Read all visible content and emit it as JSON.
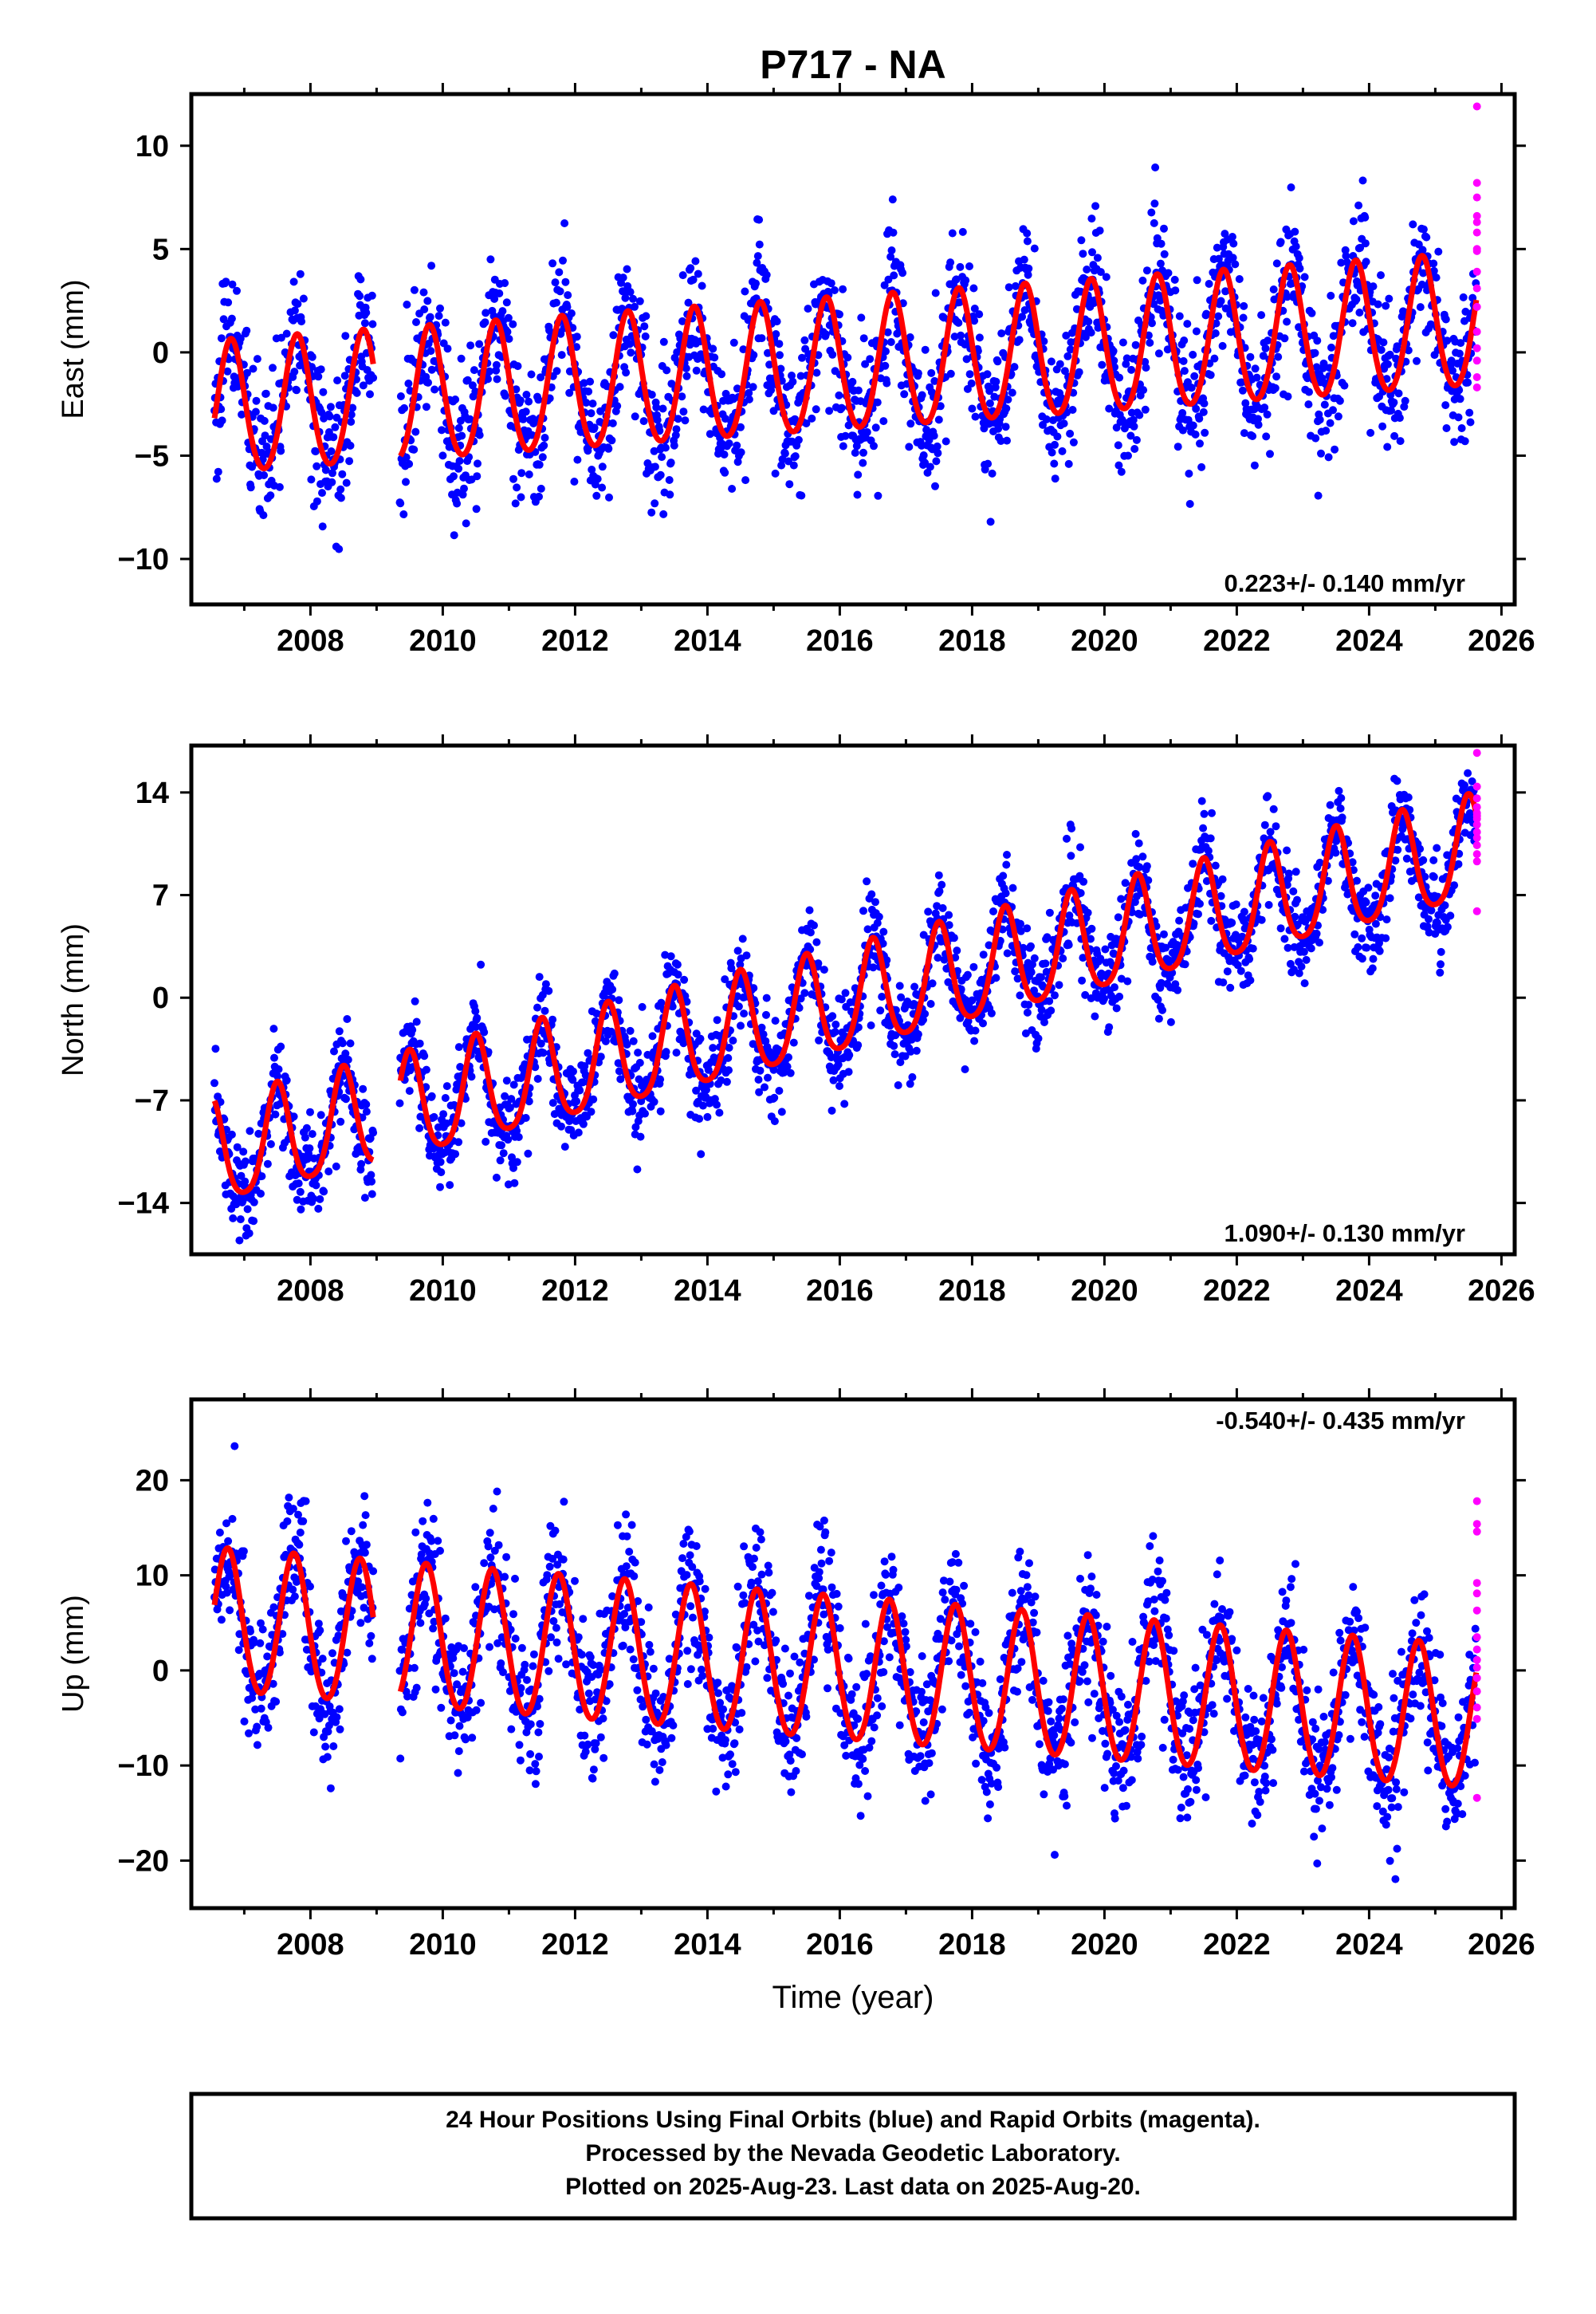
{
  "chart_data": [
    {
      "type": "scatter",
      "title": "P717 - NA",
      "ylabel": "East (mm)",
      "xlabel": "",
      "xlim": [
        2006.2,
        2026.2
      ],
      "ylim": [
        -12.2,
        12.5
      ],
      "xticks": [
        2008,
        2010,
        2012,
        2014,
        2016,
        2018,
        2020,
        2022,
        2024,
        2026
      ],
      "yticks": [
        -10,
        -5,
        0,
        5,
        10
      ],
      "rate_text": "0.223+/- 0.140 mm/yr",
      "rate_position": "bottom-right",
      "grid": false,
      "model": {
        "start": 2006.55,
        "end": 2025.62,
        "gap": [
          2008.95,
          2009.35
        ],
        "offset": -2.9,
        "slope": 0.223,
        "amp_annual": 3.2,
        "phase_peak": 0.8,
        "amp_semi": 0.3,
        "amp_growth": 0.0
      },
      "scatter": {
        "noise": 1.7,
        "outlier_range": 4.5
      },
      "rapid_points": {
        "x": 2025.63,
        "values": [
          11.9,
          8.2,
          7.5,
          6.3,
          5.8,
          4.9,
          3.9,
          3.1,
          2.2,
          1.0,
          0.2,
          -0.4,
          -1.2,
          -1.7,
          5.0,
          6.6
        ]
      },
      "series": [
        {
          "name": "Final Orbits",
          "color": "#0000ff"
        },
        {
          "name": "Rapid Orbits",
          "color": "#ff00ff"
        },
        {
          "name": "Model",
          "color": "#ff0000"
        }
      ]
    },
    {
      "type": "scatter",
      "title": "",
      "ylabel": "North (mm)",
      "xlabel": "",
      "xlim": [
        2006.2,
        2026.2
      ],
      "ylim": [
        -17.5,
        17.2
      ],
      "xticks": [
        2008,
        2010,
        2012,
        2014,
        2016,
        2018,
        2020,
        2022,
        2024,
        2026
      ],
      "yticks": [
        -14,
        -7,
        0,
        7,
        14
      ],
      "rate_text": "1.090+/- 0.130 mm/yr",
      "rate_position": "bottom-right",
      "grid": false,
      "model": {
        "start": 2006.55,
        "end": 2025.62,
        "gap": [
          2008.95,
          2009.35
        ],
        "offset": -10.9,
        "slope": 1.09,
        "amp_annual": 3.5,
        "phase_peak": 0.5,
        "amp_semi": 0.6,
        "amp_growth": 0.0
      },
      "scatter": {
        "noise": 1.6,
        "outlier_range": 4.0
      },
      "rapid_points": {
        "x": 2025.63,
        "values": [
          16.7,
          14.4,
          13.6,
          13.0,
          12.6,
          12.2,
          11.8,
          11.3,
          10.9,
          10.4,
          9.8,
          9.3,
          5.9,
          12.4
        ]
      },
      "series": [
        {
          "name": "Final Orbits",
          "color": "#0000ff"
        },
        {
          "name": "Rapid Orbits",
          "color": "#ff00ff"
        },
        {
          "name": "Model",
          "color": "#ff0000"
        }
      ]
    },
    {
      "type": "scatter",
      "title": "",
      "ylabel": "Up (mm)",
      "xlabel": "Time (year)",
      "xlim": [
        2006.2,
        2026.2
      ],
      "ylim": [
        -25,
        28.5
      ],
      "xticks": [
        2008,
        2010,
        2012,
        2014,
        2016,
        2018,
        2020,
        2022,
        2024,
        2026
      ],
      "yticks": [
        -20,
        -10,
        0,
        10,
        20
      ],
      "rate_text": "-0.540+/- 0.435 mm/yr",
      "rate_position": "top-right",
      "grid": false,
      "model": {
        "start": 2006.55,
        "end": 2025.62,
        "gap": [
          2008.95,
          2009.35
        ],
        "offset": 5.0,
        "slope": -0.54,
        "amp_annual": 7.5,
        "phase_peak": 0.75,
        "amp_semi": 0.5,
        "amp_growth": 0.0
      },
      "scatter": {
        "noise": 3.6,
        "outlier_range": 8.0
      },
      "rapid_points": {
        "x": 2025.63,
        "values": [
          17.8,
          15.4,
          14.6,
          9.2,
          8.1,
          6.3,
          2.2,
          1.1,
          0.3,
          -0.8,
          -2.2,
          -3.9,
          -5.1,
          -13.4,
          3.5
        ]
      },
      "series": [
        {
          "name": "Final Orbits",
          "color": "#0000ff"
        },
        {
          "name": "Rapid Orbits",
          "color": "#ff00ff"
        },
        {
          "name": "Model",
          "color": "#ff0000"
        }
      ]
    }
  ],
  "footer": {
    "line1": "24 Hour Positions Using Final Orbits (blue) and Rapid Orbits (magenta).",
    "line2": "Processed by the Nevada Geodetic Laboratory.",
    "line3": "Plotted on 2025-Aug-23. Last data on 2025-Aug-20."
  },
  "colors": {
    "final": "#0000ff",
    "rapid": "#ff00ff",
    "model": "#ff0000",
    "frame": "#000000"
  }
}
